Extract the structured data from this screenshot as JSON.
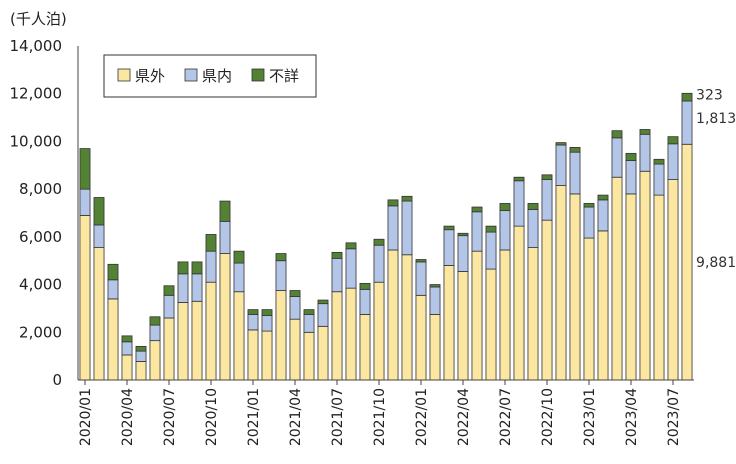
{
  "chart_data": {
    "type": "bar",
    "stacked": true,
    "unit_label": "(千人泊)",
    "ylim": [
      0,
      14000
    ],
    "yticks": [
      "0",
      "2,000",
      "4,000",
      "6,000",
      "8,000",
      "10,000",
      "12,000",
      "14,000"
    ],
    "categories": [
      "2020/01",
      "2020/02",
      "2020/03",
      "2020/04",
      "2020/05",
      "2020/06",
      "2020/07",
      "2020/08",
      "2020/09",
      "2020/10",
      "2020/11",
      "2020/12",
      "2021/01",
      "2021/02",
      "2021/03",
      "2021/04",
      "2021/05",
      "2021/06",
      "2021/07",
      "2021/08",
      "2021/09",
      "2021/10",
      "2021/11",
      "2021/12",
      "2022/01",
      "2022/02",
      "2022/03",
      "2022/04",
      "2022/05",
      "2022/06",
      "2022/07",
      "2022/08",
      "2022/09",
      "2022/10",
      "2022/11",
      "2022/12",
      "2023/01",
      "2023/02",
      "2023/03",
      "2023/04",
      "2023/05",
      "2023/06",
      "2023/07",
      "2023/08"
    ],
    "xtick_labels": [
      "2020/01",
      "2020/04",
      "2020/07",
      "2020/10",
      "2021/01",
      "2021/04",
      "2021/07",
      "2021/10",
      "2022/01",
      "2022/04",
      "2022/07",
      "2022/10",
      "2023/01",
      "2023/04",
      "2023/07"
    ],
    "series": [
      {
        "name": "県外",
        "color": "#fbe6a2",
        "values": [
          6900,
          5550,
          3400,
          1050,
          780,
          1650,
          2600,
          3250,
          3300,
          4100,
          5300,
          3700,
          2100,
          2050,
          3750,
          2550,
          2000,
          2250,
          3700,
          3850,
          2750,
          4100,
          5450,
          5250,
          3550,
          2750,
          4800,
          4550,
          5400,
          4650,
          5450,
          6450,
          5550,
          6700,
          8150,
          7800,
          5950,
          6250,
          8500,
          7800,
          8750,
          7750,
          8400,
          9881
        ]
      },
      {
        "name": "県内",
        "color": "#b4c6e7",
        "values": [
          1100,
          950,
          800,
          550,
          430,
          650,
          950,
          1200,
          1150,
          1300,
          1350,
          1200,
          650,
          650,
          1250,
          950,
          750,
          950,
          1400,
          1650,
          1050,
          1550,
          1850,
          2250,
          1400,
          1150,
          1500,
          1500,
          1650,
          1550,
          1650,
          1900,
          1600,
          1700,
          1700,
          1750,
          1300,
          1300,
          1650,
          1400,
          1550,
          1300,
          1500,
          1813
        ]
      },
      {
        "name": "不詳",
        "color": "#548235",
        "values": [
          1700,
          1150,
          650,
          250,
          200,
          350,
          400,
          500,
          500,
          700,
          850,
          500,
          200,
          250,
          300,
          250,
          200,
          150,
          250,
          250,
          250,
          250,
          250,
          200,
          100,
          100,
          150,
          100,
          200,
          250,
          300,
          150,
          250,
          200,
          100,
          200,
          150,
          200,
          300,
          300,
          200,
          200,
          300,
          323
        ]
      }
    ],
    "annotations": [
      "323",
      "1,813",
      "9,881"
    ],
    "legend": "top-left",
    "grid": false
  }
}
